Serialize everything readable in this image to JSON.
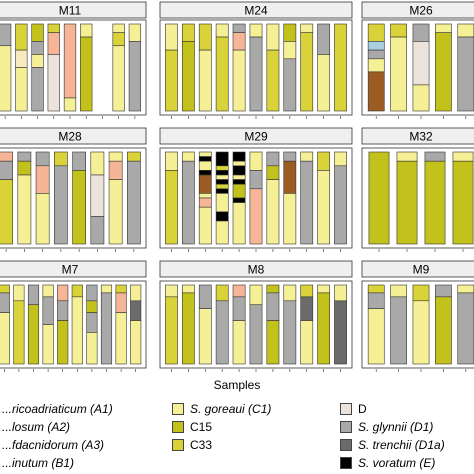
{
  "chart_data": {
    "type": "bar",
    "subtype": "stacked-100-percent-faceted",
    "xlabel": "Samples",
    "colors": {
      "A1": "#f6ebbe",
      "A2": "#f1d98f",
      "A3": "#eacb7a",
      "B1": "#c7d4a3",
      "C1": "#f5ef96",
      "C15": "#c3c11b",
      "C33": "#d9d239",
      "D": "#ece4dc",
      "D1": "#a9a9a9",
      "D1a": "#6b6b6b",
      "E": "#000000",
      "P": "#f6b596",
      "Br": "#9a5c22",
      "Bl": "#a9cfe1"
    },
    "legend": [
      {
        "label": "...ricoadriaticum (A1)",
        "key": "A1"
      },
      {
        "label": "...losum (A2)",
        "key": "A2"
      },
      {
        "label": "...fdacnidorum (A3)",
        "key": "A3"
      },
      {
        "label": "...inutum (B1)",
        "key": "B1"
      },
      {
        "label": "S. goreaui (C1)",
        "key": "C1"
      },
      {
        "label": "C15",
        "key": "C15"
      },
      {
        "label": "C33",
        "key": "C33"
      },
      {
        "label": "D",
        "key": "D"
      },
      {
        "label": "S. glynnii (D1)",
        "key": "D1"
      },
      {
        "label": "S. trenchii (D1a)",
        "key": "D1a"
      },
      {
        "label": "S. voratum (E)",
        "key": "E"
      }
    ],
    "panels": [
      {
        "name": "M11",
        "bars": [
          [
            [
              "D1",
              0.25
            ],
            [
              "C1",
              0.75
            ]
          ],
          [
            [
              "C33",
              0.3
            ],
            [
              "A1",
              0.2
            ],
            [
              "C1",
              0.5
            ]
          ],
          [
            [
              "C15",
              0.2
            ],
            [
              "D1",
              0.15
            ],
            [
              "C1",
              0.15
            ],
            [
              "D1",
              0.5
            ]
          ],
          [
            [
              "C33",
              0.1
            ],
            [
              "P",
              0.25
            ],
            [
              "D",
              0.65
            ]
          ],
          [
            [
              "P",
              0.85
            ],
            [
              "C1",
              0.15
            ]
          ],
          [
            [
              "C1",
              0.15
            ],
            [
              "C15",
              0.85
            ]
          ],
          [],
          [
            [
              "C1",
              0.1
            ],
            [
              "C33",
              0.15
            ],
            [
              "C1",
              0.75
            ]
          ],
          [
            [
              "C1",
              0.2
            ],
            [
              "D1",
              0.8
            ]
          ]
        ]
      },
      {
        "name": "M24",
        "bars": [
          [
            [
              "C1",
              0.3
            ],
            [
              "C33",
              0.7
            ]
          ],
          [
            [
              "C33",
              0.2
            ],
            [
              "C15",
              0.8
            ]
          ],
          [
            [
              "C33",
              0.3
            ],
            [
              "C1",
              0.7
            ]
          ],
          [
            [
              "C1",
              0.15
            ],
            [
              "C33",
              0.85
            ]
          ],
          [
            [
              "D1",
              0.1
            ],
            [
              "P",
              0.2
            ],
            [
              "C1",
              0.7
            ]
          ],
          [
            [
              "C1",
              0.15
            ],
            [
              "D1",
              0.85
            ]
          ],
          [
            [
              "C1",
              0.3
            ],
            [
              "C33",
              0.7
            ]
          ],
          [
            [
              "C15",
              0.2
            ],
            [
              "C1",
              0.2
            ],
            [
              "D1",
              0.6
            ]
          ],
          [
            [
              "C1",
              0.1
            ],
            [
              "C33",
              0.9
            ]
          ],
          [
            [
              "D1",
              0.35
            ],
            [
              "C1",
              0.65
            ]
          ],
          [
            [
              "C33",
              1.0
            ]
          ]
        ]
      },
      {
        "name": "M26",
        "bars": [
          [
            [
              "C33",
              0.2
            ],
            [
              "Bl",
              0.1
            ],
            [
              "D1",
              0.1
            ],
            [
              "C1",
              0.15
            ],
            [
              "Br",
              0.45
            ]
          ],
          [
            [
              "C33",
              0.15
            ],
            [
              "C1",
              0.85
            ]
          ],
          [
            [
              "D1",
              0.2
            ],
            [
              "D",
              0.5
            ],
            [
              "C1",
              0.3
            ]
          ],
          [
            [
              "C1",
              0.1
            ],
            [
              "C15",
              0.9
            ]
          ],
          [
            [
              "C1",
              0.15
            ],
            [
              "D1",
              0.85
            ]
          ]
        ]
      },
      {
        "name": "M28",
        "bars": [
          [
            [
              "P",
              0.1
            ],
            [
              "D1",
              0.2
            ],
            [
              "C33",
              0.7
            ]
          ],
          [
            [
              "D1",
              0.1
            ],
            [
              "C15",
              0.15
            ],
            [
              "C1",
              0.75
            ]
          ],
          [
            [
              "D1",
              0.15
            ],
            [
              "P",
              0.3
            ],
            [
              "C1",
              0.55
            ]
          ],
          [
            [
              "C33",
              0.15
            ],
            [
              "D1",
              0.85
            ]
          ],
          [
            [
              "D1",
              0.2
            ],
            [
              "C15",
              0.8
            ]
          ],
          [
            [
              "C1",
              0.25
            ],
            [
              "D",
              0.45
            ],
            [
              "D1",
              0.3
            ]
          ],
          [
            [
              "C1",
              0.1
            ],
            [
              "P",
              0.2
            ],
            [
              "C1",
              0.7
            ]
          ],
          [
            [
              "C33",
              0.1
            ],
            [
              "D1",
              0.9
            ]
          ]
        ]
      },
      {
        "name": "M29",
        "bars": [
          [
            [
              "C1",
              0.2
            ],
            [
              "C33",
              0.8
            ]
          ],
          [
            [
              "C1",
              0.1
            ],
            [
              "D1",
              0.9
            ]
          ],
          [
            [
              "C1",
              0.05
            ],
            [
              "E",
              0.05
            ],
            [
              "C1",
              0.1
            ],
            [
              "E",
              0.05
            ],
            [
              "Br",
              0.2
            ],
            [
              "C1",
              0.05
            ],
            [
              "P",
              0.1
            ],
            [
              "C1",
              0.4
            ]
          ],
          [
            [
              "E",
              0.15
            ],
            [
              "C33",
              0.05
            ],
            [
              "E",
              0.05
            ],
            [
              "C1",
              0.05
            ],
            [
              "E",
              0.05
            ],
            [
              "C33",
              0.05
            ],
            [
              "E",
              0.05
            ],
            [
              "C1",
              0.2
            ],
            [
              "E",
              0.1
            ],
            [
              "C1",
              0.25
            ]
          ],
          [
            [
              "E",
              0.1
            ],
            [
              "C1",
              0.05
            ],
            [
              "E",
              0.1
            ],
            [
              "C1",
              0.05
            ],
            [
              "E",
              0.05
            ],
            [
              "C15",
              0.15
            ],
            [
              "E",
              0.05
            ],
            [
              "C1",
              0.45
            ]
          ],
          [
            [
              "C1",
              0.2
            ],
            [
              "D1",
              0.2
            ],
            [
              "P",
              0.6
            ]
          ],
          [
            [
              "D1",
              0.15
            ],
            [
              "C15",
              0.15
            ],
            [
              "C1",
              0.7
            ]
          ],
          [
            [
              "D1",
              0.1
            ],
            [
              "Br",
              0.35
            ],
            [
              "C1",
              0.55
            ]
          ],
          [
            [
              "C1",
              0.1
            ],
            [
              "D1",
              0.9
            ]
          ],
          [
            [
              "C33",
              0.2
            ],
            [
              "C1",
              0.8
            ]
          ],
          [
            [
              "C1",
              0.15
            ],
            [
              "D1",
              0.85
            ]
          ]
        ]
      },
      {
        "name": "M32",
        "bars": [
          [
            [
              "C15",
              1.0
            ]
          ],
          [
            [
              "C1",
              0.1
            ],
            [
              "C15",
              0.9
            ]
          ],
          [
            [
              "D1",
              0.1
            ],
            [
              "C15",
              0.9
            ]
          ],
          [
            [
              "C1",
              0.1
            ],
            [
              "C15",
              0.9
            ]
          ]
        ]
      },
      {
        "name": "M7",
        "bars": [
          [
            [
              "C33",
              0.1
            ],
            [
              "D1",
              0.25
            ],
            [
              "C1",
              0.65
            ]
          ],
          [
            [
              "C1",
              0.2
            ],
            [
              "C33",
              0.8
            ]
          ],
          [
            [
              "D1",
              0.25
            ],
            [
              "C15",
              0.75
            ]
          ],
          [
            [
              "C1",
              0.15
            ],
            [
              "D1",
              0.35
            ],
            [
              "C1",
              0.5
            ]
          ],
          [
            [
              "P",
              0.2
            ],
            [
              "D1",
              0.25
            ],
            [
              "C15",
              0.55
            ]
          ],
          [
            [
              "C33",
              0.15
            ],
            [
              "C1",
              0.85
            ]
          ],
          [
            [
              "D1",
              0.2
            ],
            [
              "C15",
              0.15
            ],
            [
              "D1",
              0.25
            ],
            [
              "C1",
              0.4
            ]
          ],
          [
            [
              "C1",
              0.1
            ],
            [
              "D1",
              0.9
            ]
          ],
          [
            [
              "C33",
              0.1
            ],
            [
              "P",
              0.25
            ],
            [
              "C1",
              0.65
            ]
          ],
          [
            [
              "C1",
              0.2
            ],
            [
              "D1a",
              0.25
            ],
            [
              "C1",
              0.55
            ]
          ]
        ]
      },
      {
        "name": "M8",
        "bars": [
          [
            [
              "C1",
              0.15
            ],
            [
              "C33",
              0.85
            ]
          ],
          [
            [
              "C1",
              0.1
            ],
            [
              "C15",
              0.9
            ]
          ],
          [
            [
              "D1",
              0.3
            ],
            [
              "C1",
              0.7
            ]
          ],
          [
            [
              "C33",
              0.2
            ],
            [
              "D1",
              0.8
            ]
          ],
          [
            [
              "P",
              0.15
            ],
            [
              "D1",
              0.3
            ],
            [
              "C1",
              0.55
            ]
          ],
          [
            [
              "C1",
              0.25
            ],
            [
              "D1",
              0.75
            ]
          ],
          [
            [
              "C15",
              0.1
            ],
            [
              "D1",
              0.35
            ],
            [
              "C15",
              0.55
            ]
          ],
          [
            [
              "C1",
              0.2
            ],
            [
              "D1",
              0.8
            ]
          ],
          [
            [
              "C33",
              0.15
            ],
            [
              "D1a",
              0.3
            ],
            [
              "C1",
              0.55
            ]
          ],
          [
            [
              "C1",
              0.1
            ],
            [
              "C15",
              0.9
            ]
          ],
          [
            [
              "C1",
              0.2
            ],
            [
              "D1a",
              0.8
            ]
          ]
        ]
      },
      {
        "name": "M9",
        "bars": [
          [
            [
              "C33",
              0.1
            ],
            [
              "D1",
              0.2
            ],
            [
              "C1",
              0.7
            ]
          ],
          [
            [
              "C1",
              0.15
            ],
            [
              "D1",
              0.85
            ]
          ],
          [
            [
              "C33",
              0.2
            ],
            [
              "C1",
              0.8
            ]
          ],
          [
            [
              "D1",
              0.15
            ],
            [
              "C15",
              0.85
            ]
          ],
          [
            [
              "C1",
              0.1
            ],
            [
              "D1",
              0.9
            ]
          ]
        ]
      }
    ]
  }
}
